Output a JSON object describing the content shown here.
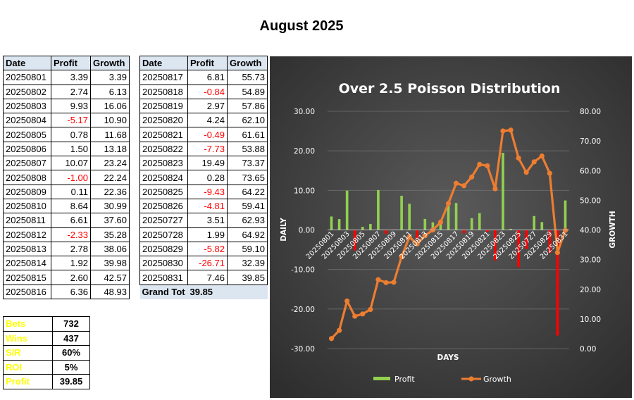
{
  "page_title": "August 2025",
  "table_headers": [
    "Date",
    "Profit",
    "Growth"
  ],
  "table_left": [
    {
      "date": "20250801",
      "profit": "3.39",
      "growth": "3.39"
    },
    {
      "date": "20250802",
      "profit": "2.74",
      "growth": "6.13"
    },
    {
      "date": "20250803",
      "profit": "9.93",
      "growth": "16.06"
    },
    {
      "date": "20250804",
      "profit": "-5.17",
      "growth": "10.90"
    },
    {
      "date": "20250805",
      "profit": "0.78",
      "growth": "11.68"
    },
    {
      "date": "20250806",
      "profit": "1.50",
      "growth": "13.18"
    },
    {
      "date": "20250807",
      "profit": "10.07",
      "growth": "23.24"
    },
    {
      "date": "20250808",
      "profit": "-1.00",
      "growth": "22.24"
    },
    {
      "date": "20250809",
      "profit": "0.11",
      "growth": "22.36"
    },
    {
      "date": "20250810",
      "profit": "8.64",
      "growth": "30.99"
    },
    {
      "date": "20250811",
      "profit": "6.61",
      "growth": "37.60"
    },
    {
      "date": "20250812",
      "profit": "-2.33",
      "growth": "35.28"
    },
    {
      "date": "20250813",
      "profit": "2.78",
      "growth": "38.06"
    },
    {
      "date": "20250814",
      "profit": "1.92",
      "growth": "39.98"
    },
    {
      "date": "20250815",
      "profit": "2.60",
      "growth": "42.57"
    },
    {
      "date": "20250816",
      "profit": "6.36",
      "growth": "48.93"
    }
  ],
  "table_right": [
    {
      "date": "20250817",
      "profit": "6.81",
      "growth": "55.73"
    },
    {
      "date": "20250818",
      "profit": "-0.84",
      "growth": "54.89"
    },
    {
      "date": "20250819",
      "profit": "2.97",
      "growth": "57.86"
    },
    {
      "date": "20250820",
      "profit": "4.24",
      "growth": "62.10"
    },
    {
      "date": "20250821",
      "profit": "-0.49",
      "growth": "61.61"
    },
    {
      "date": "20250822",
      "profit": "-7.73",
      "growth": "53.88"
    },
    {
      "date": "20250823",
      "profit": "19.49",
      "growth": "73.37"
    },
    {
      "date": "20250824",
      "profit": "0.28",
      "growth": "73.65"
    },
    {
      "date": "20250825",
      "profit": "-9.43",
      "growth": "64.22"
    },
    {
      "date": "20250826",
      "profit": "-4.81",
      "growth": "59.41"
    },
    {
      "date": "20250727",
      "profit": "3.51",
      "growth": "62.93"
    },
    {
      "date": "20250728",
      "profit": "1.99",
      "growth": "64.92"
    },
    {
      "date": "20250829",
      "profit": "-5.82",
      "growth": "59.10"
    },
    {
      "date": "20250830",
      "profit": "-26.71",
      "growth": "32.39"
    },
    {
      "date": "20250831",
      "profit": "7.46",
      "growth": "39.85"
    }
  ],
  "grand_total": {
    "label": "Grand Tot",
    "value": "39.85"
  },
  "summary": [
    {
      "label": "Bets",
      "value": "732"
    },
    {
      "label": "Wins",
      "value": "437"
    },
    {
      "label": "S/R",
      "value": "60%"
    },
    {
      "label": "ROI",
      "value": "5%"
    },
    {
      "label": "Profit",
      "value": "39.85"
    }
  ],
  "colors": {
    "header_bg": "#dce6f1",
    "negative_text": "#ff0000",
    "summary_label": "#ffff00",
    "chart_bg_center": "#5a5a5a",
    "chart_bg_edge": "#2e2e2e",
    "bar_positive": "#92d050",
    "bar_negative": "#ff0000",
    "line": "#ed7d31",
    "chart_text": "#ffffff"
  },
  "chart_data": {
    "type": "bar",
    "title": "Over 2.5 Poisson Distribution",
    "xlabel": "DAYS",
    "ylabel": "DAILY",
    "y2label": "GROWTH",
    "ylim": [
      -30,
      30
    ],
    "y2lim": [
      0,
      80
    ],
    "yticks": [
      "30.00",
      "20.00",
      "10.00",
      "0.00",
      "-10.00",
      "-20.00",
      "-30.00"
    ],
    "y2ticks": [
      "80.00",
      "70.00",
      "60.00",
      "50.00",
      "40.00",
      "30.00",
      "20.00",
      "10.00",
      "0.00"
    ],
    "x_tick_labels": [
      "20250801",
      "20250803",
      "20250805",
      "20250807",
      "20250809",
      "20250811",
      "20250813",
      "20250815",
      "20250817",
      "20250819",
      "20250821",
      "20250823",
      "20250825",
      "20250727",
      "20250829",
      "20250831"
    ],
    "categories": [
      "20250801",
      "20250802",
      "20250803",
      "20250804",
      "20250805",
      "20250806",
      "20250807",
      "20250808",
      "20250809",
      "20250810",
      "20250811",
      "20250812",
      "20250813",
      "20250814",
      "20250815",
      "20250816",
      "20250817",
      "20250818",
      "20250819",
      "20250820",
      "20250821",
      "20250822",
      "20250823",
      "20250824",
      "20250825",
      "20250826",
      "20250727",
      "20250728",
      "20250829",
      "20250830",
      "20250831"
    ],
    "series": [
      {
        "name": "Profit",
        "type": "bar",
        "axis": "left",
        "values": [
          3.39,
          2.74,
          9.93,
          -5.17,
          0.78,
          1.5,
          10.07,
          -1.0,
          0.11,
          8.64,
          6.61,
          -2.33,
          2.78,
          1.92,
          2.6,
          6.36,
          6.81,
          -0.84,
          2.97,
          4.24,
          -0.49,
          -7.73,
          19.49,
          0.28,
          -9.43,
          -4.81,
          3.51,
          1.99,
          -5.82,
          -26.71,
          7.46
        ]
      },
      {
        "name": "Growth",
        "type": "line",
        "axis": "right",
        "values": [
          3.39,
          6.13,
          16.06,
          10.9,
          11.68,
          13.18,
          23.24,
          22.24,
          22.36,
          30.99,
          37.6,
          35.28,
          38.06,
          39.98,
          42.57,
          48.93,
          55.73,
          54.89,
          57.86,
          62.1,
          61.61,
          53.88,
          73.37,
          73.65,
          64.22,
          59.41,
          62.93,
          64.92,
          59.1,
          32.39,
          39.85
        ]
      }
    ],
    "legend_position": "bottom",
    "grid": true
  }
}
